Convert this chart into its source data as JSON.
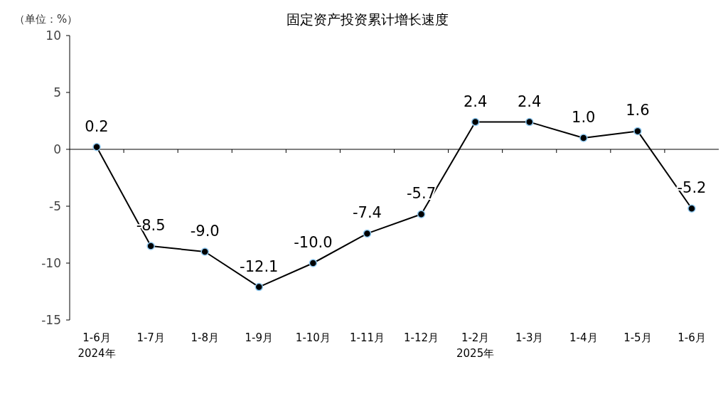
{
  "chart_data": {
    "type": "line",
    "title": "固定资产投资累计增长速度",
    "annotations": [
      "（单位：%）"
    ],
    "categories": [
      "1-6月\n2024年",
      "1-7月",
      "1-8月",
      "1-9月",
      "1-10月",
      "1-11月",
      "1-12月",
      "1-2月\n2025年",
      "1-3月",
      "1-4月",
      "1-5月",
      "1-6月"
    ],
    "series": [
      {
        "color": "#000000",
        "values": [
          0.2,
          -8.5,
          -9.0,
          -12.1,
          -10.0,
          -7.4,
          -5.7,
          2.4,
          2.4,
          1.0,
          1.6,
          -5.2
        ],
        "value_labels": [
          "0.2",
          "-8.5",
          "-9.0",
          "-12.1",
          "-10.0",
          "-7.4",
          "-5.7",
          "2.4",
          "2.4",
          "1.0",
          "1.6",
          "-5.2"
        ]
      }
    ],
    "ylim": [
      -15,
      10
    ],
    "yticks": [
      -15,
      -10,
      -5,
      0,
      5,
      10
    ],
    "marker": "circle"
  }
}
